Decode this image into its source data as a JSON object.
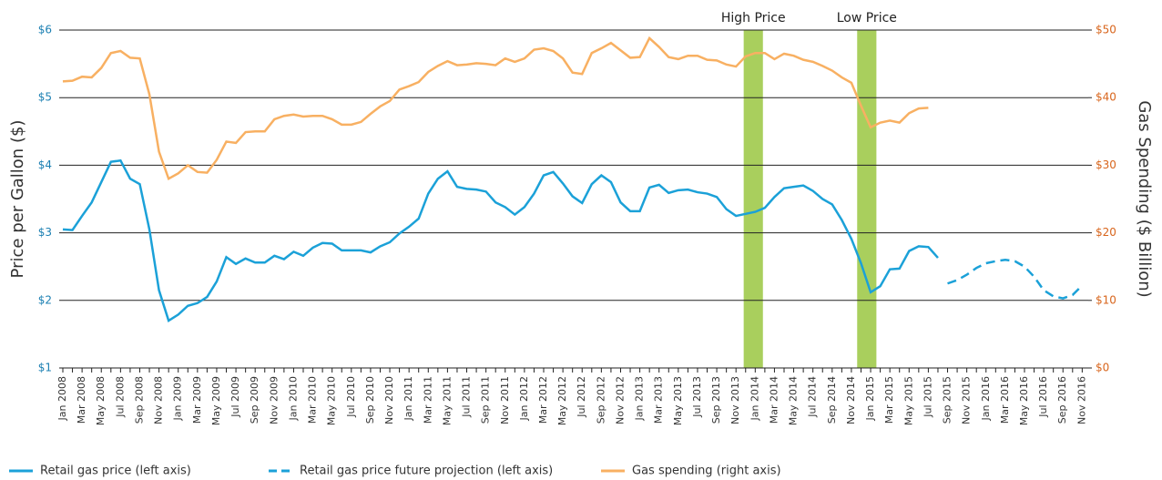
{
  "chart_data": {
    "type": "line",
    "categories": [
      "Jan 2008",
      null,
      "Mar 2008",
      null,
      "May 2008",
      null,
      "Jul 2008",
      null,
      "Sep 2008",
      null,
      "Nov 2008",
      null,
      "Jan 2009",
      null,
      "Mar 2009",
      null,
      "May 2009",
      null,
      "Jul 2009",
      null,
      "Sep 2009",
      null,
      "Nov 2009",
      null,
      "Jan 2010",
      null,
      "Mar 2010",
      null,
      "May 2010",
      null,
      "Jul 2010",
      null,
      "Sep 2010",
      null,
      "Nov 2010",
      null,
      "Jan 2011",
      null,
      "Mar 2011",
      null,
      "May 2011",
      null,
      "Jul 2011",
      null,
      "Sep 2011",
      null,
      "Nov 2011",
      null,
      "Jan 2012",
      null,
      "Mar 2012",
      null,
      "May 2012",
      null,
      "Jul 2012",
      null,
      "Sep 2012",
      null,
      "Nov 2012",
      null,
      "Jan 2013",
      null,
      "Mar 2013",
      null,
      "May 2013",
      null,
      "Jul 2013",
      null,
      "Sep 2013",
      null,
      "Nov 2013",
      null,
      "Jan 2014",
      null,
      "Mar 2014",
      null,
      "May 2014",
      null,
      "Jul 2014",
      null,
      "Sep 2014",
      null,
      "Nov 2014",
      null,
      "Jan 2015",
      null,
      "Mar 2015",
      null,
      "May 2015",
      null,
      "Jul 2015",
      null,
      "Sep 2015",
      null,
      "Nov 2015",
      null,
      "Jan 2016",
      null,
      "Mar 2016",
      null,
      "May 2016",
      null,
      "Jul 2016",
      null,
      "Sep 2016",
      null,
      "Nov 2016"
    ],
    "series": [
      {
        "name": "Retail gas price (left axis)",
        "color": "#1ba1d8",
        "axis": "y",
        "style": "solid",
        "values": [
          3.05,
          3.04,
          3.25,
          3.45,
          3.75,
          4.05,
          4.07,
          3.8,
          3.72,
          3.05,
          2.15,
          1.7,
          1.79,
          1.92,
          1.96,
          2.05,
          2.28,
          2.64,
          2.54,
          2.62,
          2.56,
          2.56,
          2.66,
          2.61,
          2.72,
          2.66,
          2.78,
          2.85,
          2.84,
          2.74,
          2.74,
          2.74,
          2.71,
          2.8,
          2.86,
          2.99,
          3.09,
          3.21,
          3.58,
          3.8,
          3.91,
          3.68,
          3.65,
          3.64,
          3.61,
          3.45,
          3.38,
          3.27,
          3.38,
          3.58,
          3.85,
          3.9,
          3.73,
          3.54,
          3.44,
          3.72,
          3.85,
          3.75,
          3.45,
          3.32,
          3.32,
          3.67,
          3.71,
          3.59,
          3.63,
          3.64,
          3.6,
          3.58,
          3.53,
          3.35,
          3.25,
          3.28,
          3.31,
          3.37,
          3.53,
          3.66,
          3.68,
          3.7,
          3.62,
          3.5,
          3.42,
          3.19,
          2.91,
          2.55,
          2.12,
          2.21,
          2.46,
          2.47,
          2.73,
          2.8,
          2.79,
          2.63,
          null,
          null,
          null,
          null,
          null,
          null,
          null,
          null,
          null,
          null,
          null,
          null,
          null,
          null,
          null
        ]
      },
      {
        "name": "Retail gas price future projection (left axis)",
        "color": "#1ba1d8",
        "axis": "y",
        "style": "dashed",
        "values": [
          null,
          null,
          null,
          null,
          null,
          null,
          null,
          null,
          null,
          null,
          null,
          null,
          null,
          null,
          null,
          null,
          null,
          null,
          null,
          null,
          null,
          null,
          null,
          null,
          null,
          null,
          null,
          null,
          null,
          null,
          null,
          null,
          null,
          null,
          null,
          null,
          null,
          null,
          null,
          null,
          null,
          null,
          null,
          null,
          null,
          null,
          null,
          null,
          null,
          null,
          null,
          null,
          null,
          null,
          null,
          null,
          null,
          null,
          null,
          null,
          null,
          null,
          null,
          null,
          null,
          null,
          null,
          null,
          null,
          null,
          null,
          null,
          null,
          null,
          null,
          null,
          null,
          null,
          null,
          null,
          null,
          null,
          null,
          null,
          null,
          null,
          null,
          null,
          null,
          null,
          null,
          null,
          2.25,
          2.3,
          2.38,
          2.48,
          2.55,
          2.58,
          2.6,
          2.58,
          2.5,
          2.35,
          2.15,
          2.06,
          2.03,
          2.08,
          2.22
        ]
      },
      {
        "name": "Gas spending (right axis)",
        "color": "#f8b062",
        "axis": "y2",
        "style": "solid",
        "values": [
          42.4,
          42.5,
          43.1,
          43.0,
          44.4,
          46.6,
          46.9,
          45.9,
          45.8,
          40.5,
          32.0,
          28.0,
          28.8,
          30.0,
          29.0,
          28.9,
          30.8,
          33.5,
          33.3,
          34.9,
          35.0,
          35.0,
          36.8,
          37.3,
          37.5,
          37.2,
          37.3,
          37.3,
          36.8,
          36.0,
          36.0,
          36.4,
          37.6,
          38.7,
          39.5,
          41.2,
          41.7,
          42.3,
          43.8,
          44.7,
          45.4,
          44.8,
          44.9,
          45.1,
          45.0,
          44.8,
          45.8,
          45.3,
          45.8,
          47.1,
          47.3,
          46.9,
          45.8,
          43.7,
          43.5,
          46.6,
          47.3,
          48.1,
          47.0,
          45.9,
          46.0,
          48.8,
          47.5,
          46.0,
          45.7,
          46.2,
          46.2,
          45.6,
          45.5,
          44.9,
          44.6,
          46.1,
          46.6,
          46.6,
          45.7,
          46.5,
          46.2,
          45.6,
          45.3,
          44.7,
          44.0,
          43.0,
          42.2,
          38.8,
          35.6,
          36.3,
          36.6,
          36.3,
          37.7,
          38.4,
          38.5,
          null,
          null,
          null,
          null,
          null,
          null,
          null,
          null,
          null,
          null,
          null,
          null,
          null,
          null,
          null,
          null
        ]
      }
    ],
    "ylabel": "Price per Gallon ($)",
    "y2label": "Gas Spending ($ Billion)",
    "ylim": [
      1,
      6
    ],
    "yticks": [
      {
        "value": 1,
        "label": "$1"
      },
      {
        "value": 2,
        "label": "$2"
      },
      {
        "value": 3,
        "label": "$3"
      },
      {
        "value": 4,
        "label": "$4"
      },
      {
        "value": 5,
        "label": "$5"
      },
      {
        "value": 6,
        "label": "$6"
      }
    ],
    "y2lim": [
      0,
      50
    ],
    "y2ticks": [
      {
        "value": 0,
        "label": "$0"
      },
      {
        "value": 10,
        "label": "$10"
      },
      {
        "value": 20,
        "label": "$20"
      },
      {
        "value": 30,
        "label": "$30"
      },
      {
        "value": 40,
        "label": "$40"
      },
      {
        "value": 50,
        "label": "$50"
      }
    ],
    "bands": [
      {
        "label": "High Price",
        "start": 70.8,
        "end": 72.8
      },
      {
        "label": "Low Price",
        "start": 82.6,
        "end": 84.6
      }
    ],
    "band_color": "#a9cf5d",
    "grid": true,
    "legend": "bottom"
  }
}
